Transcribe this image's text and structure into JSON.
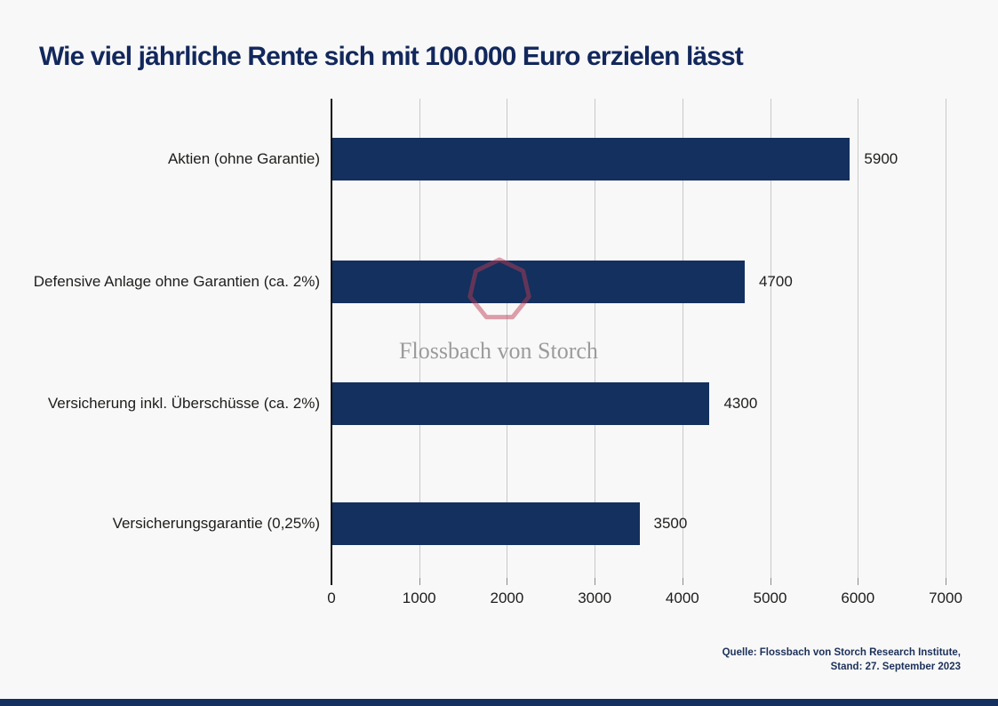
{
  "watermark": {
    "logo_icon": "heptagon-outline",
    "logo_color": "#bc3a52",
    "text": "Flossbach von Storch",
    "text_color": "#9b9b9b"
  },
  "source": {
    "line1": "Quelle: Flossbach von Storch Research Institute,",
    "line2": "Stand: 27. September 2023"
  },
  "colors": {
    "background": "#f8f8f8",
    "title": "#12285c",
    "bar": "#13305e",
    "gridline": "#c9c9c9",
    "axis": "#111111",
    "footer_bar": "#13305e"
  },
  "chart_data": {
    "type": "bar",
    "orientation": "horizontal",
    "title": "Wie viel jährliche Rente sich mit 100.000 Euro erzielen lässt",
    "categories": [
      "Aktien (ohne Garantie)",
      "Defensive Anlage ohne Garantien (ca. 2%)",
      "Versicherung inkl. Überschüsse (ca. 2%)",
      "Versicherungsgarantie (0,25%)"
    ],
    "values": [
      5900,
      4700,
      4300,
      3500
    ],
    "value_labels": [
      "5900",
      "4700",
      "4300",
      "3500"
    ],
    "xlabel": "",
    "ylabel": "",
    "xlim": [
      0,
      7000
    ],
    "xticks": [
      0,
      1000,
      2000,
      3000,
      4000,
      5000,
      6000,
      7000
    ],
    "grid": "vertical",
    "legend": "none",
    "bar_color": "#13305e"
  }
}
